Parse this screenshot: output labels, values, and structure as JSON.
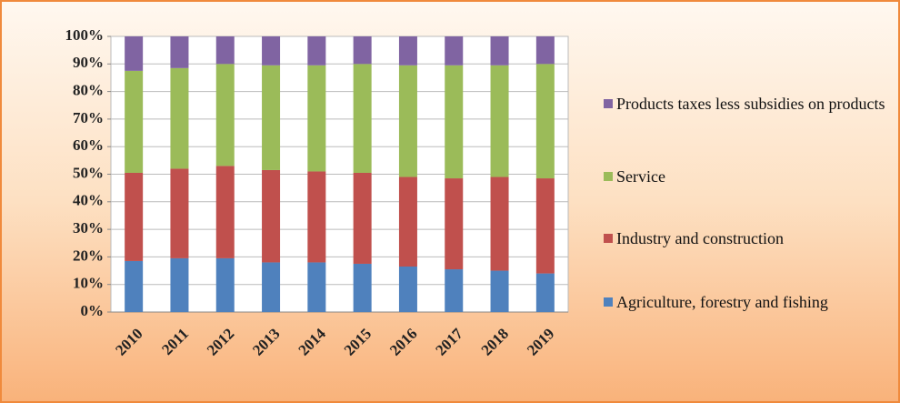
{
  "chart_data": {
    "type": "stacked_bar",
    "categories": [
      "2010",
      "2011",
      "2012",
      "2013",
      "2014",
      "2015",
      "2016",
      "2017",
      "2018",
      "2019"
    ],
    "series": [
      {
        "name": "Agriculture, forestry and fishing",
        "color": "#4f81bd",
        "values": [
          18.5,
          19.5,
          19.5,
          18,
          18,
          17.5,
          16.5,
          15.5,
          15,
          14
        ]
      },
      {
        "name": "Industry and construction",
        "color": "#c0504d",
        "values": [
          32,
          32.5,
          33.5,
          33.5,
          33,
          33,
          32.5,
          33,
          34,
          34.5
        ]
      },
      {
        "name": "Service",
        "color": "#9bbb59",
        "values": [
          37,
          36.5,
          37,
          38,
          38.5,
          39.5,
          40.5,
          41,
          40.5,
          41.5
        ]
      },
      {
        "name": "Products taxes less subsidies on products",
        "color": "#8064a2",
        "values": [
          12.5,
          11.5,
          10,
          10.5,
          10.5,
          10,
          10.5,
          10.5,
          10.5,
          10
        ]
      }
    ],
    "ylim": [
      0,
      100
    ],
    "yticks": [
      {
        "value": 0,
        "label": "0%"
      },
      {
        "value": 10,
        "label": "10%"
      },
      {
        "value": 20,
        "label": "20%"
      },
      {
        "value": 30,
        "label": "30%"
      },
      {
        "value": 40,
        "label": "40%"
      },
      {
        "value": 50,
        "label": "50%"
      },
      {
        "value": 60,
        "label": "60%"
      },
      {
        "value": 70,
        "label": "70%"
      },
      {
        "value": 80,
        "label": "80%"
      },
      {
        "value": 90,
        "label": "90%"
      },
      {
        "value": 100,
        "label": "100%"
      }
    ],
    "grid": true,
    "legend": "right"
  }
}
